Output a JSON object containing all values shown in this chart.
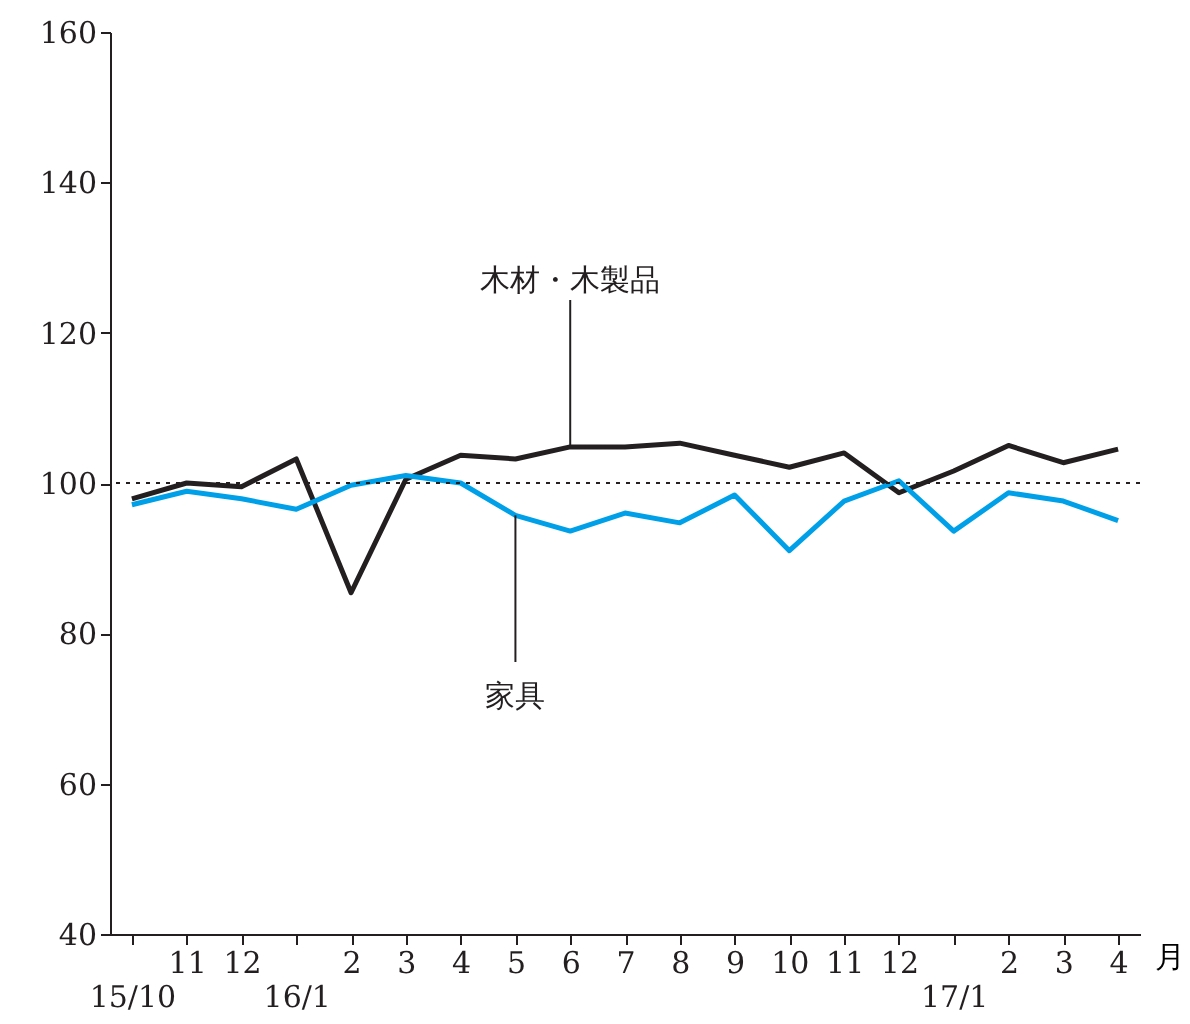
{
  "chart_data": {
    "type": "line",
    "xlabel": "月",
    "categories": [
      "15/10",
      "11",
      "12",
      "16/1",
      "2",
      "3",
      "4",
      "5",
      "6",
      "7",
      "8",
      "9",
      "10",
      "11",
      "12",
      "17/1",
      "2",
      "3",
      "4"
    ],
    "series": [
      {
        "name": "木材・木製品",
        "color": "#231f20",
        "values": [
          97.9,
          100,
          99.5,
          103.2,
          85.4,
          100.5,
          103.7,
          103.2,
          104.8,
          104.8,
          105.3,
          103.7,
          102.1,
          104,
          98.7,
          101.6,
          105,
          102.7,
          104.5
        ]
      },
      {
        "name": "家具",
        "color": "#00a0e9",
        "values": [
          97.1,
          98.9,
          97.9,
          96.5,
          99.7,
          101,
          100,
          95.7,
          93.6,
          96,
          94.7,
          98.4,
          91,
          97.6,
          100.3,
          93.6,
          98.7,
          97.6,
          95
        ]
      }
    ],
    "ylim": [
      40,
      160
    ],
    "yticks": [
      40,
      60,
      80,
      100,
      120,
      140,
      160
    ],
    "grid": false,
    "ref_lines": [
      {
        "axis": "y",
        "value": 100,
        "color": "#231f20",
        "line_style": "dotted"
      }
    ]
  }
}
